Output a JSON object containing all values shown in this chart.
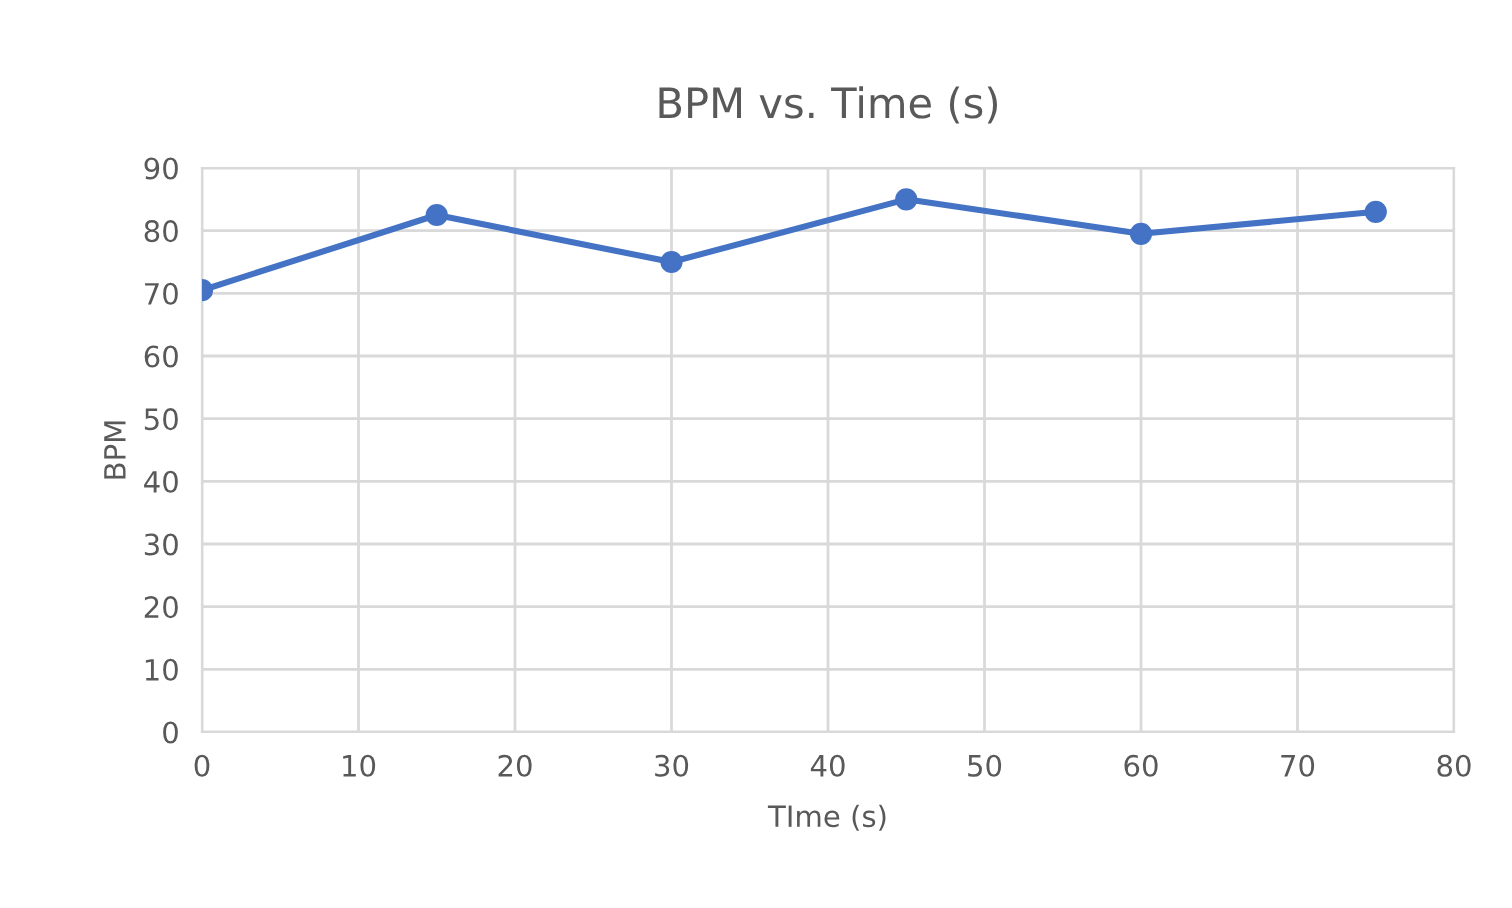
{
  "chart_data": {
    "type": "line",
    "title": "BPM vs. Time (s)",
    "xlabel": "TIme (s)",
    "ylabel": "BPM",
    "x": [
      0,
      15,
      30,
      45,
      60,
      75
    ],
    "series": [
      {
        "color": "#4472c4",
        "values": [
          70.5,
          82.5,
          75,
          85,
          79.5,
          83
        ]
      }
    ],
    "xlim": [
      0,
      80
    ],
    "xticks": [
      0,
      10,
      20,
      30,
      40,
      50,
      60,
      70,
      80
    ],
    "ylim": [
      0,
      90
    ],
    "yticks": [
      0,
      10,
      20,
      30,
      40,
      50,
      60,
      70,
      80,
      90
    ],
    "grid": true,
    "marker": "circle",
    "line_style": "solid",
    "legend": false
  }
}
